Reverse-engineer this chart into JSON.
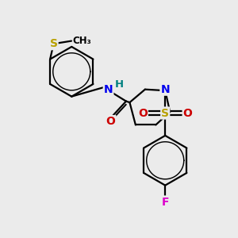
{
  "background_color": "#ebebeb",
  "atom_colors": {
    "S_thioether": "#b8a000",
    "S_sulfonyl": "#b8a000",
    "N_amide": "#0000ee",
    "N_piperidine": "#0000ee",
    "H_amide": "#008080",
    "O_carbonyl": "#cc0000",
    "O_sulfonyl": "#cc0000",
    "F": "#dd00cc",
    "C": "#000000"
  },
  "bond_color": "#000000",
  "bond_width": 1.6,
  "figsize": [
    3.0,
    3.0
  ],
  "dpi": 100,
  "xlim": [
    0,
    10
  ],
  "ylim": [
    0,
    10
  ]
}
